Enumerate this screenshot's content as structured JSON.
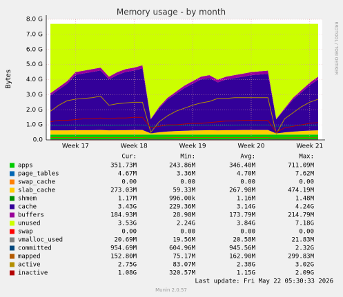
{
  "chart_data": {
    "type": "area",
    "title": "Memory usage - by month",
    "y_label": "Bytes",
    "watermark": "RRDTOOL / TOBI OETIKER",
    "categories": [
      null,
      null,
      null,
      "Week 17",
      null,
      null,
      null,
      null,
      null,
      null,
      "Week 18",
      null,
      null,
      null,
      null,
      null,
      null,
      "Week 19",
      null,
      null,
      null,
      null,
      null,
      null,
      "Week 20",
      null,
      null,
      null,
      null,
      null,
      null,
      "Week 21",
      null
    ],
    "ylim": [
      0,
      8
    ],
    "yticks": [
      {
        "value": 0,
        "label": "0.0"
      },
      {
        "value": 1,
        "label": "1.0 G"
      },
      {
        "value": 2,
        "label": "2.0 G"
      },
      {
        "value": 3,
        "label": "3.0 G"
      },
      {
        "value": 4,
        "label": "4.0 G"
      },
      {
        "value": 5,
        "label": "5.0 G"
      },
      {
        "value": 6,
        "label": "6.0 G"
      },
      {
        "value": 7,
        "label": "7.0 G"
      },
      {
        "value": 8,
        "label": "8.0 G"
      }
    ],
    "grid": true,
    "stats_header": [
      "Cur:",
      "Min:",
      "Avg:",
      "Max:"
    ],
    "series": [
      {
        "name": "apps",
        "color": "#00CC00",
        "style": "area",
        "values": [
          0.35,
          0.35,
          0.35,
          0.35,
          0.35,
          0.35,
          0.35,
          0.35,
          0.35,
          0.35,
          0.35,
          0.35,
          0.35,
          0.35,
          0.35,
          0.35,
          0.35,
          0.35,
          0.35,
          0.35,
          0.35,
          0.35,
          0.35,
          0.35,
          0.35,
          0.35,
          0.35,
          0.35,
          0.35,
          0.35,
          0.35,
          0.35,
          0.35
        ],
        "stats": [
          "351.73M",
          "243.86M",
          "346.40M",
          "711.09M"
        ]
      },
      {
        "name": "page_tables",
        "color": "#0066B3",
        "style": "area",
        "values": [
          0.005,
          0.005,
          0.005,
          0.005,
          0.005,
          0.005,
          0.005,
          0.005,
          0.005,
          0.005,
          0.005,
          0.005,
          0.005,
          0.005,
          0.005,
          0.005,
          0.005,
          0.005,
          0.005,
          0.005,
          0.005,
          0.005,
          0.005,
          0.005,
          0.005,
          0.005,
          0.005,
          0.005,
          0.005,
          0.005,
          0.005,
          0.005,
          0.005
        ],
        "stats": [
          "4.67M",
          "3.36M",
          "4.70M",
          "7.62M"
        ]
      },
      {
        "name": "swap_cache",
        "color": "#FF8000",
        "style": "area",
        "values": [
          0,
          0,
          0,
          0,
          0,
          0,
          0,
          0,
          0,
          0,
          0,
          0,
          0,
          0,
          0,
          0,
          0,
          0,
          0,
          0,
          0,
          0,
          0,
          0,
          0,
          0,
          0,
          0,
          0,
          0,
          0,
          0,
          0
        ],
        "stats": [
          "0.00",
          "0.00",
          "0.00",
          "0.00"
        ]
      },
      {
        "name": "slab_cache",
        "color": "#FFCC00",
        "style": "area",
        "values": [
          0.28,
          0.28,
          0.28,
          0.29,
          0.29,
          0.29,
          0.3,
          0.28,
          0.29,
          0.29,
          0.3,
          0.3,
          0.08,
          0.15,
          0.2,
          0.23,
          0.25,
          0.27,
          0.28,
          0.29,
          0.28,
          0.29,
          0.29,
          0.3,
          0.3,
          0.3,
          0.3,
          0.07,
          0.14,
          0.19,
          0.23,
          0.26,
          0.28
        ],
        "stats": [
          "273.03M",
          "59.33M",
          "267.98M",
          "474.19M"
        ]
      },
      {
        "name": "shmem",
        "color": "#008F00",
        "style": "area",
        "values": [
          0.001,
          0.001,
          0.001,
          0.001,
          0.001,
          0.001,
          0.001,
          0.001,
          0.001,
          0.001,
          0.001,
          0.001,
          0.001,
          0.001,
          0.001,
          0.001,
          0.001,
          0.001,
          0.001,
          0.001,
          0.001,
          0.001,
          0.001,
          0.001,
          0.001,
          0.001,
          0.001,
          0.001,
          0.001,
          0.001,
          0.001,
          0.001,
          0.001
        ],
        "stats": [
          "1.17M",
          "996.00k",
          "1.16M",
          "1.48M"
        ]
      },
      {
        "name": "cache",
        "color": "#330099",
        "style": "area",
        "values": [
          2.31,
          2.7,
          3.09,
          3.67,
          3.77,
          3.86,
          3.95,
          3.38,
          3.66,
          3.86,
          3.94,
          4.09,
          0.92,
          1.6,
          2.12,
          2.47,
          2.83,
          3.1,
          3.38,
          3.46,
          3.18,
          3.36,
          3.45,
          3.54,
          3.64,
          3.68,
          3.73,
          0.94,
          1.52,
          2.13,
          2.56,
          3.01,
          3.37
        ],
        "stats": [
          "3.43G",
          "229.36M",
          "3.14G",
          "4.24G"
        ]
      },
      {
        "name": "buffers",
        "color": "#990099",
        "style": "area",
        "values": [
          0.15,
          0.16,
          0.17,
          0.18,
          0.18,
          0.19,
          0.19,
          0.18,
          0.19,
          0.19,
          0.2,
          0.2,
          0.04,
          0.09,
          0.12,
          0.14,
          0.16,
          0.17,
          0.18,
          0.19,
          0.18,
          0.19,
          0.2,
          0.2,
          0.2,
          0.21,
          0.21,
          0.03,
          0.08,
          0.12,
          0.15,
          0.17,
          0.19
        ],
        "stats": [
          "184.93M",
          "28.98M",
          "173.79M",
          "214.79M"
        ]
      },
      {
        "name": "unused",
        "color": "#CCFF00",
        "style": "area",
        "values": [
          4.6,
          4.2,
          3.8,
          3.2,
          3.1,
          3.0,
          2.9,
          3.5,
          3.2,
          3.0,
          2.9,
          2.75,
          6.3,
          5.5,
          4.9,
          4.5,
          4.1,
          3.8,
          3.5,
          3.4,
          3.7,
          3.5,
          3.4,
          3.3,
          3.2,
          3.15,
          3.1,
          6.3,
          5.6,
          4.9,
          4.4,
          3.9,
          3.5
        ],
        "stats": [
          "3.53G",
          "2.24G",
          "3.84G",
          "7.18G"
        ]
      },
      {
        "name": "swap",
        "color": "#FF0000",
        "style": "line",
        "values": [
          0,
          0,
          0,
          0,
          0,
          0,
          0,
          0,
          0,
          0,
          0,
          0,
          0,
          0,
          0,
          0,
          0,
          0,
          0,
          0,
          0,
          0,
          0,
          0,
          0,
          0,
          0,
          0,
          0,
          0,
          0,
          0,
          0
        ],
        "stats": [
          "0.00",
          "0.00",
          "0.00",
          "0.00"
        ]
      },
      {
        "name": "vmalloc_used",
        "color": "#808080",
        "style": "line",
        "values": [
          0.021,
          0.021,
          0.021,
          0.021,
          0.021,
          0.021,
          0.021,
          0.021,
          0.021,
          0.021,
          0.021,
          0.021,
          0.02,
          0.02,
          0.021,
          0.021,
          0.021,
          0.021,
          0.021,
          0.021,
          0.021,
          0.021,
          0.021,
          0.021,
          0.021,
          0.021,
          0.021,
          0.02,
          0.02,
          0.021,
          0.021,
          0.021,
          0.021
        ],
        "stats": [
          "20.69M",
          "19.56M",
          "20.58M",
          "21.83M"
        ]
      },
      {
        "name": "committed",
        "color": "#00487D",
        "style": "line",
        "values": [
          0.93,
          0.94,
          0.95,
          0.96,
          0.95,
          0.96,
          0.97,
          0.95,
          0.96,
          0.96,
          0.97,
          0.97,
          0.9,
          0.92,
          0.93,
          0.94,
          0.95,
          0.95,
          0.96,
          0.96,
          0.95,
          0.96,
          0.96,
          0.97,
          0.97,
          0.97,
          0.97,
          0.9,
          0.92,
          0.93,
          0.94,
          0.95,
          0.95
        ],
        "stats": [
          "954.69M",
          "604.96M",
          "945.56M",
          "2.32G"
        ]
      },
      {
        "name": "mapped",
        "color": "#B35A00",
        "style": "line",
        "values": [
          0.16,
          0.16,
          0.16,
          0.16,
          0.16,
          0.16,
          0.16,
          0.16,
          0.16,
          0.16,
          0.16,
          0.16,
          0.12,
          0.14,
          0.15,
          0.16,
          0.16,
          0.16,
          0.16,
          0.16,
          0.16,
          0.16,
          0.16,
          0.16,
          0.16,
          0.16,
          0.16,
          0.12,
          0.14,
          0.15,
          0.15,
          0.15,
          0.15
        ],
        "stats": [
          "152.80M",
          "75.17M",
          "162.90M",
          "299.83M"
        ]
      },
      {
        "name": "active",
        "color": "#B38F00",
        "style": "line",
        "values": [
          1.9,
          2.3,
          2.6,
          2.7,
          2.75,
          2.8,
          2.9,
          2.3,
          2.4,
          2.45,
          2.5,
          2.5,
          0.5,
          1.2,
          1.6,
          1.9,
          2.1,
          2.3,
          2.45,
          2.55,
          2.75,
          2.75,
          2.8,
          2.8,
          2.8,
          2.8,
          2.8,
          0.4,
          1.4,
          1.8,
          2.2,
          2.5,
          2.7
        ],
        "stats": [
          "2.75G",
          "83.07M",
          "2.38G",
          "3.02G"
        ]
      },
      {
        "name": "inactive",
        "color": "#B30000",
        "style": "line",
        "values": [
          1.2,
          1.3,
          1.3,
          1.35,
          1.4,
          1.4,
          1.45,
          1.4,
          1.45,
          1.45,
          1.5,
          1.5,
          0.8,
          0.9,
          1.0,
          1.0,
          1.05,
          1.1,
          1.1,
          1.15,
          1.2,
          1.25,
          1.25,
          1.3,
          1.3,
          1.3,
          1.3,
          0.5,
          0.8,
          0.9,
          1.0,
          1.1,
          1.15
        ],
        "stats": [
          "1.08G",
          "320.57M",
          "1.15G",
          "2.09G"
        ]
      }
    ],
    "last_update": "Last update: Fri May 22 05:30:33 2026",
    "footer": "Munin 2.0.57"
  }
}
